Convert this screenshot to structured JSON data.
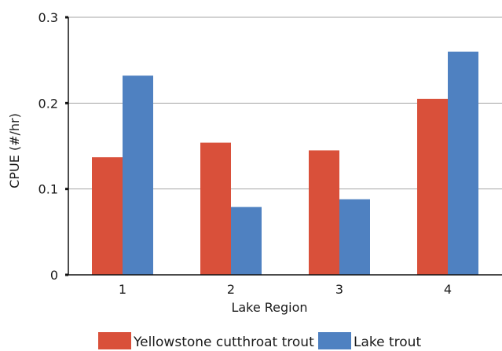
{
  "chart_data": {
    "type": "bar",
    "categories": [
      "1",
      "2",
      "3",
      "4"
    ],
    "series": [
      {
        "name": "Yellowstone cutthroat trout",
        "color": "#d9503a",
        "values": [
          0.137,
          0.154,
          0.145,
          0.205
        ]
      },
      {
        "name": "Lake trout",
        "color": "#4f81c1",
        "values": [
          0.232,
          0.079,
          0.088,
          0.26
        ]
      }
    ],
    "title": "",
    "xlabel": "Lake Region",
    "ylabel": "CPUE (#/hr)",
    "ylim": [
      0,
      0.3
    ],
    "yticks": [
      "0",
      "0.1",
      "0.2",
      "0.3"
    ],
    "grid": true,
    "legend_position": "bottom"
  }
}
